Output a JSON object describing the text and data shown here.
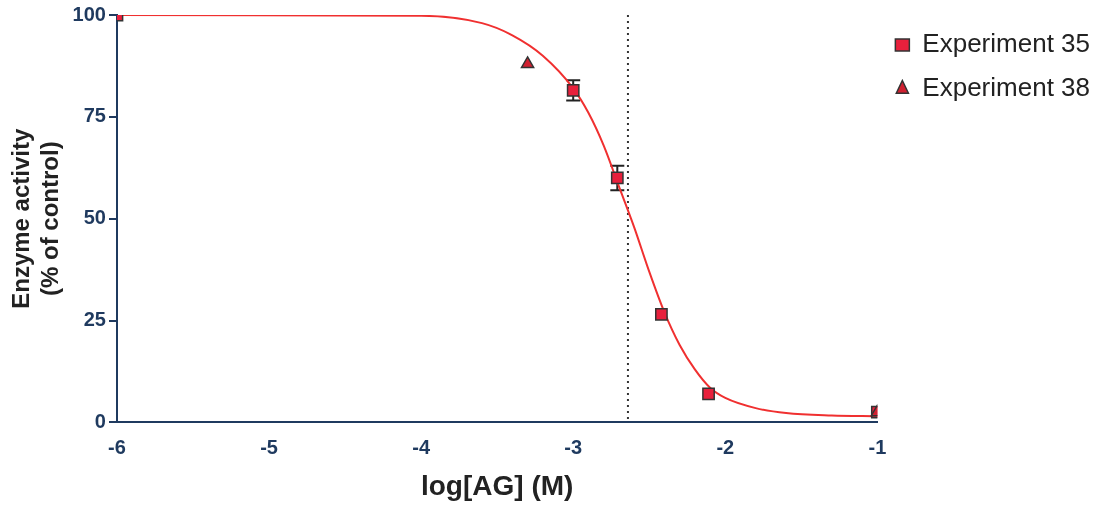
{
  "chart_data": {
    "type": "scatter",
    "xlabel": "log[AG] (M)",
    "ylabel": "Enzyme activity\n(% of control)",
    "xlim": [
      -6,
      -1
    ],
    "xticks": [
      -6,
      -5,
      -4,
      -3,
      -2,
      -1
    ],
    "ylim": [
      0,
      100
    ],
    "yticks": [
      0,
      25,
      50,
      75,
      100
    ],
    "grid": false,
    "legend": "top right",
    "series": [
      {
        "name": "Experiment 35",
        "color": "#e8203c",
        "marker": "square",
        "x": [
          -6,
          -3,
          -2.71,
          -2.42,
          -2.11,
          -1
        ],
        "values": [
          100,
          81.5,
          60,
          26.5,
          7,
          2.5
        ],
        "errors": [
          null,
          2.5,
          3,
          null,
          null,
          null
        ]
      },
      {
        "name": "Experiment 38",
        "color": "#d02030",
        "marker": "triangle",
        "x": [
          -3.3,
          -1
        ],
        "values": [
          88,
          2.5
        ]
      },
      {
        "type": "line",
        "color": "#f03030",
        "marker": "none",
        "x": [
          -6,
          -4,
          -3.6,
          -3.4,
          -3.2,
          -3.0,
          -2.9,
          -2.8,
          -2.7,
          -2.6,
          -2.5,
          -2.4,
          -2.3,
          -2.2,
          -2.1,
          -2.0,
          -1.8,
          -1.6,
          -1.3,
          -1
        ],
        "values": [
          100,
          99.8,
          98,
          95,
          90,
          82,
          76,
          68,
          58,
          48,
          37,
          27,
          19,
          13,
          8.5,
          6,
          3.5,
          2.3,
          1.7,
          1.5
        ]
      }
    ],
    "ref_lines": [
      {
        "axis": "x",
        "value": -2.64,
        "line_style": "dotted",
        "color": "#333333"
      }
    ]
  }
}
